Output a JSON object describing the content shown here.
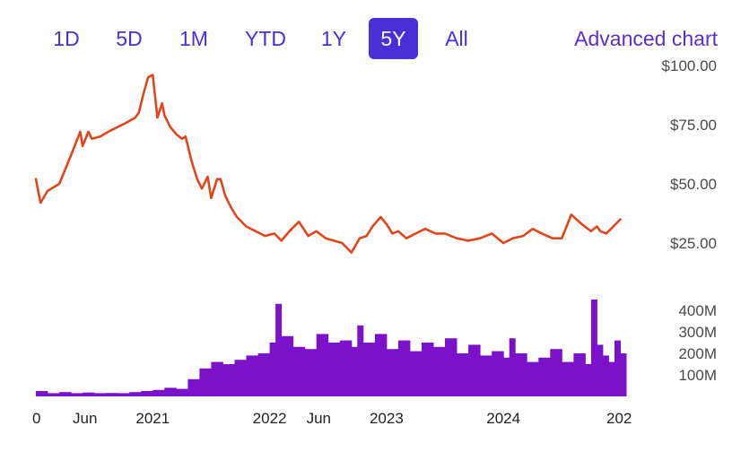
{
  "range_tabs": [
    {
      "label": "1D",
      "active": false
    },
    {
      "label": "5D",
      "active": false
    },
    {
      "label": "1M",
      "active": false
    },
    {
      "label": "YTD",
      "active": false
    },
    {
      "label": "1Y",
      "active": false
    },
    {
      "label": "5Y",
      "active": true
    },
    {
      "label": "All",
      "active": false
    }
  ],
  "advanced_chart_label": "Advanced chart",
  "colors": {
    "price_line": "#e0461c",
    "volume_fill": "#7b12c9",
    "accent": "#4a2fd6"
  },
  "chart_data": [
    {
      "type": "line",
      "title": "",
      "xlabel": "",
      "ylabel": "",
      "ylim": [
        15,
        100
      ],
      "y_ticks": [
        "$100.00",
        "$75.00",
        "$50.00",
        "$25.00"
      ],
      "y_tick_values": [
        100,
        75,
        50,
        25
      ],
      "x_tick_labels": [
        "0",
        "Jun",
        "2021",
        "2022",
        "Jun",
        "2023",
        "2024",
        "202"
      ],
      "x_tick_times": [
        2020.0,
        2020.42,
        2021.0,
        2022.0,
        2022.42,
        2023.0,
        2024.0,
        2025.0
      ],
      "x_range": [
        2020.0,
        2025.05
      ],
      "series": [
        {
          "x": [
            2020.0,
            2020.04,
            2020.1,
            2020.2,
            2020.3,
            2020.38,
            2020.4,
            2020.45,
            2020.48,
            2020.55,
            2020.62,
            2020.7,
            2020.78,
            2020.85,
            2020.88,
            2020.92,
            2020.96,
            2021.0,
            2021.04,
            2021.08,
            2021.1,
            2021.15,
            2021.2,
            2021.25,
            2021.28,
            2021.33,
            2021.38,
            2021.42,
            2021.47,
            2021.5,
            2021.55,
            2021.58,
            2021.62,
            2021.67,
            2021.72,
            2021.8,
            2021.88,
            2021.96,
            2022.04,
            2022.1,
            2022.17,
            2022.25,
            2022.33,
            2022.4,
            2022.48,
            2022.55,
            2022.62,
            2022.7,
            2022.77,
            2022.83,
            2022.88,
            2022.95,
            2023.0,
            2023.05,
            2023.1,
            2023.17,
            2023.25,
            2023.33,
            2023.42,
            2023.5,
            2023.6,
            2023.7,
            2023.8,
            2023.9,
            2024.0,
            2024.08,
            2024.17,
            2024.25,
            2024.33,
            2024.42,
            2024.5,
            2024.58,
            2024.67,
            2024.75,
            2024.8,
            2024.83,
            2024.88,
            2024.92,
            2024.96,
            2025.0
          ],
          "y": [
            52,
            42,
            47,
            50,
            62,
            72,
            66,
            72,
            69,
            70,
            72,
            74,
            76,
            78,
            80,
            88,
            95,
            96,
            78,
            84,
            79,
            74,
            71,
            69,
            70,
            60,
            52,
            48,
            53,
            44,
            52,
            52,
            45,
            40,
            36,
            32,
            30,
            28,
            29,
            26,
            30,
            34,
            28,
            30,
            27,
            26,
            25,
            21,
            27,
            28,
            32,
            36,
            33,
            29,
            30,
            27,
            29,
            31,
            29,
            29,
            27,
            26,
            27,
            29,
            25,
            27,
            28,
            31,
            29,
            27,
            27,
            37,
            33,
            30,
            32,
            30,
            29,
            31,
            33,
            35
          ]
        }
      ]
    },
    {
      "type": "bar",
      "title": "",
      "xlabel": "",
      "ylabel": "",
      "ylim": [
        0,
        480
      ],
      "y_ticks": [
        "400M",
        "300M",
        "200M",
        "100M"
      ],
      "y_tick_values": [
        400,
        300,
        200,
        100
      ],
      "unit": "M shares",
      "x_range": [
        2020.0,
        2025.05
      ],
      "series": [
        {
          "x": [
            2020.0,
            2020.1,
            2020.2,
            2020.3,
            2020.4,
            2020.5,
            2020.6,
            2020.7,
            2020.8,
            2020.9,
            2021.0,
            2021.1,
            2021.2,
            2021.3,
            2021.4,
            2021.5,
            2021.6,
            2021.7,
            2021.8,
            2021.9,
            2022.0,
            2022.05,
            2022.1,
            2022.2,
            2022.3,
            2022.4,
            2022.5,
            2022.6,
            2022.7,
            2022.75,
            2022.8,
            2022.9,
            2023.0,
            2023.1,
            2023.2,
            2023.3,
            2023.4,
            2023.5,
            2023.6,
            2023.7,
            2023.8,
            2023.9,
            2024.0,
            2024.05,
            2024.1,
            2024.2,
            2024.3,
            2024.4,
            2024.5,
            2024.6,
            2024.7,
            2024.75,
            2024.8,
            2024.85,
            2024.9,
            2024.95,
            2025.0
          ],
          "y": [
            25,
            15,
            20,
            15,
            18,
            15,
            16,
            15,
            20,
            25,
            30,
            40,
            35,
            80,
            130,
            160,
            150,
            170,
            190,
            200,
            250,
            430,
            280,
            230,
            220,
            290,
            250,
            260,
            230,
            330,
            250,
            290,
            220,
            260,
            210,
            250,
            230,
            270,
            200,
            240,
            190,
            210,
            180,
            270,
            200,
            160,
            180,
            220,
            160,
            200,
            150,
            450,
            240,
            190,
            160,
            260,
            200
          ]
        }
      ]
    }
  ]
}
